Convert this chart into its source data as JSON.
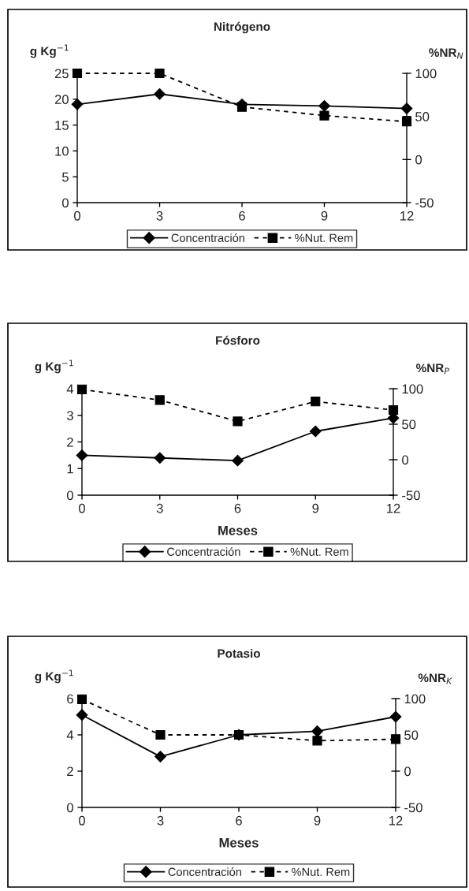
{
  "chart_data": [
    {
      "type": "line",
      "title": "Nitrógeno",
      "ylabel": "g Kg$^{−1}$",
      "y2label": "%NR$_{N}$",
      "x": [
        0,
        3,
        6,
        9,
        12
      ],
      "xlim": [
        0,
        12
      ],
      "xticks": [
        0,
        3,
        6,
        9,
        12
      ],
      "ylim": [
        0,
        25
      ],
      "yticks": [
        0,
        5,
        10,
        15,
        20,
        25
      ],
      "y2lim": [
        -50,
        100
      ],
      "y2ticks": [
        -50,
        0,
        50,
        100
      ],
      "legend": "bottom",
      "series": [
        {
          "name": "Concentración",
          "color": "#000000",
          "marker": "diamond",
          "line_style": "solid",
          "values": [
            19.0,
            21.0,
            19.0,
            18.7,
            18.2
          ]
        },
        {
          "name": "%Nut. Rem",
          "color": "#000000",
          "marker": "square",
          "line_style": "dashed",
          "axis": "y2",
          "values": [
            100,
            100,
            61,
            51,
            44
          ]
        }
      ]
    },
    {
      "type": "line",
      "title": "Fósforo",
      "xlabel": "Meses",
      "ylabel": "g Kg$^{−1}$",
      "y2label": "%NR$_{P}$",
      "x": [
        0,
        3,
        6,
        9,
        12
      ],
      "xlim": [
        0,
        12
      ],
      "xticks": [
        0,
        3,
        6,
        9,
        12
      ],
      "ylim": [
        0,
        4
      ],
      "yticks": [
        0,
        1,
        2,
        3,
        4
      ],
      "y2lim": [
        -50,
        100
      ],
      "y2ticks": [
        -50,
        0,
        50,
        100
      ],
      "legend": "bottom",
      "series": [
        {
          "name": "Concentración",
          "color": "#000000",
          "marker": "diamond",
          "line_style": "solid",
          "values": [
            1.5,
            1.4,
            1.3,
            2.4,
            2.9
          ]
        },
        {
          "name": "%Nut. Rem",
          "color": "#000000",
          "marker": "square",
          "line_style": "dashed",
          "axis": "y2",
          "values": [
            99,
            84,
            54,
            82,
            70
          ]
        }
      ]
    },
    {
      "type": "line",
      "title": "Potasio",
      "xlabel": "Meses",
      "ylabel": "g Kg$^{−1}$",
      "y2label": "%NR$_{K}$",
      "x": [
        0,
        3,
        6,
        9,
        12
      ],
      "xlim": [
        0,
        12
      ],
      "xticks": [
        0,
        3,
        6,
        9,
        12
      ],
      "ylim": [
        0,
        6
      ],
      "yticks": [
        0,
        2,
        4,
        6
      ],
      "y2lim": [
        -50,
        100
      ],
      "y2ticks": [
        -50,
        0,
        50,
        100
      ],
      "legend": "bottom",
      "series": [
        {
          "name": "Concentración",
          "color": "#000000",
          "marker": "diamond",
          "line_style": "solid",
          "values": [
            5.1,
            2.8,
            4.0,
            4.2,
            5.0
          ]
        },
        {
          "name": "%Nut. Rem",
          "color": "#000000",
          "marker": "square",
          "line_style": "dashed",
          "axis": "y2",
          "values": [
            99,
            50,
            50,
            42,
            44
          ]
        }
      ]
    }
  ]
}
